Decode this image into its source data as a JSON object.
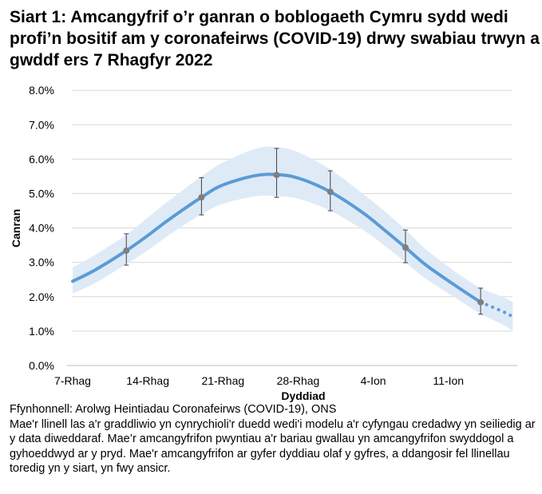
{
  "chart_data": {
    "type": "line",
    "title": "Siart 1: Amcangyfrif o’r ganran o boblogaeth Cymru sydd wedi profi’n bositif am y coronafeirws (COVID-19) drwy swabiau trwyn a gwddf ers 7 Rhagfyr 2022",
    "xlabel": "Dyddiad",
    "ylabel": "Canran",
    "ylim": [
      0,
      8
    ],
    "yticks": [
      "0.0%",
      "1.0%",
      "2.0%",
      "3.0%",
      "4.0%",
      "5.0%",
      "6.0%",
      "7.0%",
      "8.0%"
    ],
    "xticks": [
      {
        "date": "2022-12-07",
        "label": "7-Rhag"
      },
      {
        "date": "2022-12-14",
        "label": "14-Rhag"
      },
      {
        "date": "2022-12-21",
        "label": "21-Rhag"
      },
      {
        "date": "2022-12-28",
        "label": "28-Rhag"
      },
      {
        "date": "2023-01-04",
        "label": "4-Ion"
      },
      {
        "date": "2023-01-11",
        "label": "11-Ion"
      }
    ],
    "grid": true,
    "colors": {
      "line": "#5b9bd5",
      "band": "#dfeaf7",
      "points": "#7f7f7f",
      "errorbars": "#404040",
      "grid": "#d9d9d9"
    },
    "modelled_series": [
      {
        "date": "2022-12-07",
        "value": 2.45,
        "lower": 2.1,
        "upper": 2.85
      },
      {
        "date": "2022-12-09",
        "value": 2.76,
        "lower": 2.38,
        "upper": 3.2
      },
      {
        "date": "2022-12-12",
        "value": 3.34,
        "lower": 2.95,
        "upper": 3.8
      },
      {
        "date": "2022-12-14",
        "value": 3.78,
        "lower": 3.35,
        "upper": 4.3
      },
      {
        "date": "2022-12-16",
        "value": 4.25,
        "lower": 3.8,
        "upper": 4.8
      },
      {
        "date": "2022-12-19",
        "value": 4.89,
        "lower": 4.4,
        "upper": 5.5
      },
      {
        "date": "2022-12-21",
        "value": 5.25,
        "lower": 4.7,
        "upper": 5.9
      },
      {
        "date": "2022-12-24",
        "value": 5.52,
        "lower": 4.92,
        "upper": 6.3
      },
      {
        "date": "2022-12-26",
        "value": 5.55,
        "lower": 4.92,
        "upper": 6.35
      },
      {
        "date": "2022-12-28",
        "value": 5.45,
        "lower": 4.85,
        "upper": 6.2
      },
      {
        "date": "2022-12-31",
        "value": 5.05,
        "lower": 4.5,
        "upper": 5.7
      },
      {
        "date": "2023-01-03",
        "value": 4.45,
        "lower": 3.95,
        "upper": 5.0
      },
      {
        "date": "2023-01-05",
        "value": 3.95,
        "lower": 3.5,
        "upper": 4.5
      },
      {
        "date": "2023-01-07",
        "value": 3.43,
        "lower": 3.0,
        "upper": 3.95
      },
      {
        "date": "2023-01-09",
        "value": 2.9,
        "lower": 2.5,
        "upper": 3.35
      },
      {
        "date": "2023-01-12",
        "value": 2.25,
        "lower": 1.9,
        "upper": 2.65
      },
      {
        "date": "2023-01-14",
        "value": 1.84,
        "lower": 1.5,
        "upper": 2.25
      }
    ],
    "provisional_series": [
      {
        "date": "2023-01-14",
        "value": 1.84,
        "lower": 1.5,
        "upper": 2.25
      },
      {
        "date": "2023-01-16",
        "value": 1.58,
        "lower": 1.2,
        "upper": 2.0
      },
      {
        "date": "2023-01-17",
        "value": 1.42,
        "lower": 1.0,
        "upper": 1.85
      }
    ],
    "official_estimates": [
      {
        "date": "2022-12-12",
        "value": 3.34,
        "lower": 2.92,
        "upper": 3.83
      },
      {
        "date": "2022-12-19",
        "value": 4.89,
        "lower": 4.38,
        "upper": 5.46
      },
      {
        "date": "2022-12-26",
        "value": 5.54,
        "lower": 4.89,
        "upper": 6.31
      },
      {
        "date": "2022-12-31",
        "value": 5.05,
        "lower": 4.5,
        "upper": 5.66
      },
      {
        "date": "2023-01-07",
        "value": 3.43,
        "lower": 2.99,
        "upper": 3.94
      },
      {
        "date": "2023-01-14",
        "value": 1.84,
        "lower": 1.49,
        "upper": 2.25
      }
    ]
  },
  "notes": {
    "source": "Ffynhonnell: Arolwg Heintiadau Coronafeirws (COVID-19), ONS",
    "text": "Mae'r llinell las a'r graddliwio yn cynrychioli'r duedd wedi'i modelu a'r cyfyngau credadwy yn seiliedig ar y data diweddaraf. Mae’r amcangyfrifon pwyntiau a'r bariau gwallau yn amcangyfrifon swyddogol a gyhoeddwyd ar y pryd. Mae'r amcangyfrifon ar gyfer dyddiau olaf y gyfres, a ddangosir fel llinellau toredig yn y siart, yn fwy ansicr."
  }
}
